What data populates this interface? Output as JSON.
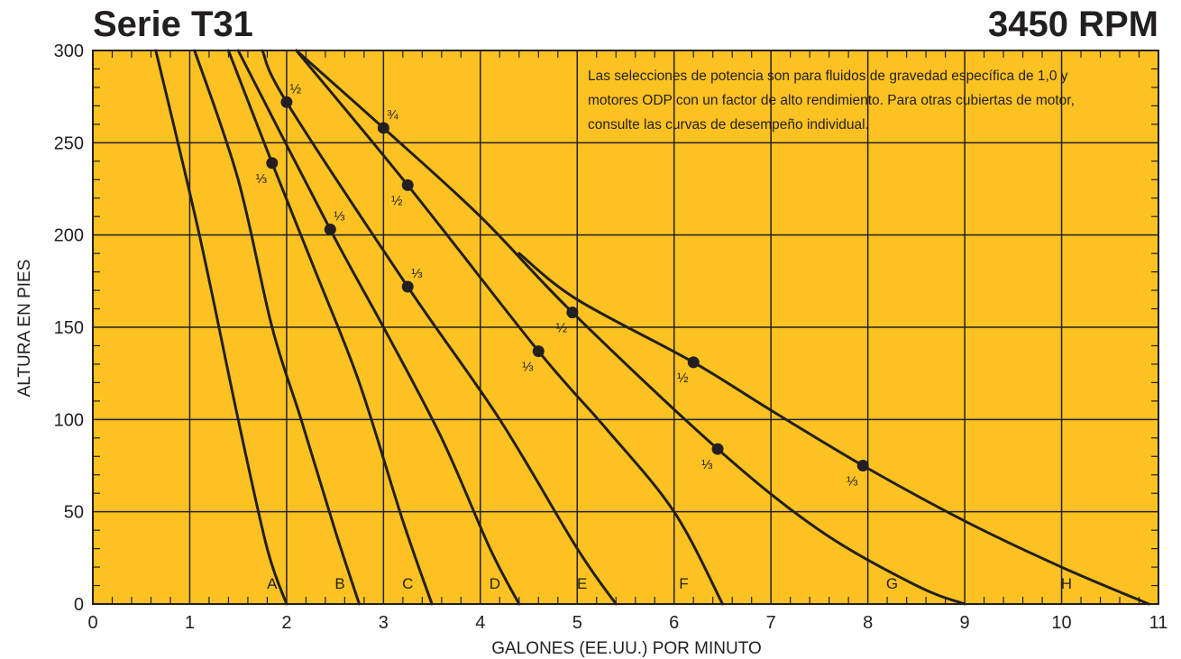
{
  "header": {
    "title": "Serie T31",
    "speed": "3450 RPM"
  },
  "note": [
    "Las selecciones de potencia son para fluidos de gravedad específica de 1,0 y",
    "motores ODP con un factor de alto rendimiento. Para otras cubiertas de motor,",
    "consulte las curvas de desempeño individual."
  ],
  "colors": {
    "background": "#fcc222",
    "line": "#231f20",
    "grid": "#231f20"
  },
  "chart_data": {
    "type": "line",
    "title": "Serie T31",
    "subtitle": "3450 RPM",
    "xlabel": "GALONES (EE.UU.) POR MINUTO",
    "ylabel": "ALTURA EN PIES",
    "xlim": [
      0,
      11
    ],
    "ylim": [
      0,
      300
    ],
    "xticks": [
      0,
      1,
      2,
      3,
      4,
      5,
      6,
      7,
      8,
      9,
      10,
      11
    ],
    "yticks": [
      0,
      50,
      100,
      150,
      200,
      250,
      300
    ],
    "xtick_labels": [
      "0",
      "1",
      "2",
      "3",
      "4",
      "5",
      "6",
      "7",
      "8",
      "9",
      "10",
      "11"
    ],
    "ytick_labels": [
      "0",
      "50",
      "100",
      "150",
      "200",
      "250",
      "300"
    ],
    "grid": true,
    "series": [
      {
        "name": "A",
        "x": [
          0.65,
          1.1,
          1.5,
          1.8,
          2.0
        ],
        "y": [
          300,
          200,
          100,
          30,
          0
        ],
        "label_x": 1.85,
        "markers": []
      },
      {
        "name": "B",
        "x": [
          1.05,
          1.5,
          1.85,
          2.15,
          2.5,
          2.75
        ],
        "y": [
          300,
          230,
          150,
          100,
          40,
          0
        ],
        "label_x": 2.55,
        "markers": []
      },
      {
        "name": "C",
        "x": [
          1.4,
          1.85,
          2.3,
          2.75,
          3.2,
          3.5
        ],
        "y": [
          300,
          239,
          180,
          120,
          45,
          0
        ],
        "label_x": 3.25,
        "markers": [
          {
            "x": 1.85,
            "y": 239,
            "label": "⅓"
          }
        ]
      },
      {
        "name": "D",
        "x": [
          1.5,
          2.45,
          3.0,
          3.6,
          4.1,
          4.4
        ],
        "y": [
          300,
          203,
          150,
          90,
          30,
          0
        ],
        "label_x": 4.15,
        "markers": [
          {
            "x": 2.45,
            "y": 203,
            "label": "⅓"
          }
        ]
      },
      {
        "name": "E",
        "x": [
          1.75,
          2.0,
          3.25,
          4.2,
          5.0,
          5.4
        ],
        "y": [
          300,
          272,
          172,
          100,
          30,
          0
        ],
        "label_x": 5.05,
        "markers": [
          {
            "x": 2.0,
            "y": 272,
            "label": "½"
          },
          {
            "x": 3.25,
            "y": 172,
            "label": "⅓"
          }
        ]
      },
      {
        "name": "F",
        "x": [
          2.1,
          3.25,
          4.6,
          5.3,
          6.0,
          6.5
        ],
        "y": [
          300,
          227,
          137,
          95,
          50,
          0
        ],
        "label_x": 6.1,
        "markers": [
          {
            "x": 3.25,
            "y": 227,
            "label": "½"
          },
          {
            "x": 4.6,
            "y": 137,
            "label": "⅓"
          }
        ]
      },
      {
        "name": "G",
        "x": [
          2.1,
          3.0,
          4.0,
          4.95,
          6.45,
          7.5,
          8.5,
          9.0
        ],
        "y": [
          300,
          258,
          210,
          158,
          84,
          40,
          10,
          0
        ],
        "label_x": 8.25,
        "markers": [
          {
            "x": 3.0,
            "y": 258,
            "label": "¾"
          },
          {
            "x": 4.95,
            "y": 158,
            "label": "½"
          },
          {
            "x": 6.45,
            "y": 84,
            "label": "⅓"
          }
        ]
      },
      {
        "name": "H",
        "x": [
          4.4,
          5.0,
          6.2,
          7.0,
          7.95,
          9.0,
          10.0,
          10.9
        ],
        "y": [
          190,
          165,
          131,
          105,
          75,
          45,
          20,
          0
        ],
        "label_x": 10.05,
        "markers": [
          {
            "x": 6.2,
            "y": 131,
            "label": "½"
          },
          {
            "x": 7.95,
            "y": 75,
            "label": "⅓"
          }
        ]
      }
    ]
  }
}
